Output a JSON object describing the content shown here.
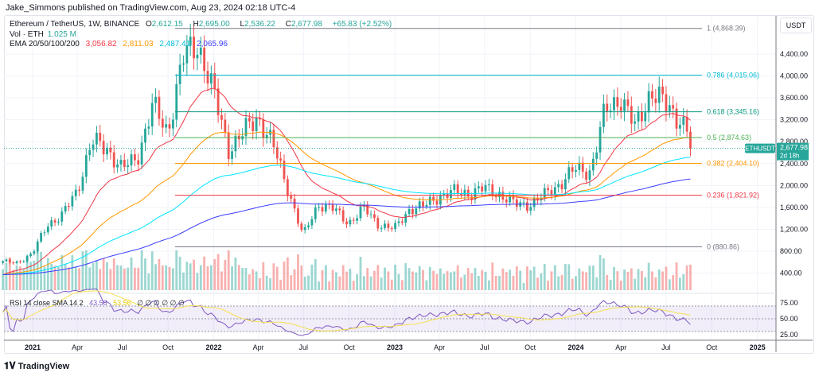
{
  "publisher": "Jake_Simmons published on TradingView.com, Aug 23, 2024 02:18 UTC-4",
  "legend": {
    "symbol": "Ethereum / TetherUS, 1W, BINANCE",
    "o_label": "O",
    "o": "2,612.15",
    "h_label": "H",
    "h": "2,695.00",
    "l_label": "L",
    "l": "2,536.22",
    "c_label": "C",
    "c": "2,677.98",
    "change": "+65.83 (+2.52%)",
    "vol_label": "Vol · ETH",
    "vol": "1.025 M",
    "ema_label": "EMA 20/50/100/200",
    "ema_values": [
      "3,056.82",
      "2,811.03",
      "2,487.41",
      "2,065.96"
    ],
    "rsi_label": "RSI 14 close SMA 14 2",
    "rsi_value": "43.58",
    "rsi_sma": "53.56",
    "rsi_empty": "∅ ∅ ∅ ∅ ∅ ∅"
  },
  "price_axis": {
    "unit": "USDT",
    "ticks": [
      "4,400.00",
      "4,000.00",
      "3,600.00",
      "3,200.00",
      "2,800.00",
      "2,400.00",
      "2,000.00",
      "1,600.00",
      "1,200.00",
      "800.00",
      "400.00"
    ]
  },
  "rsi_axis": {
    "ticks": [
      "75.00",
      "50.00",
      "25.00"
    ]
  },
  "time_axis": {
    "ticks": [
      "2021",
      "Apr",
      "Jul",
      "Oct",
      "2022",
      "Apr",
      "Jul",
      "Oct",
      "2023",
      "Apr",
      "Jul",
      "Oct",
      "2024",
      "Apr",
      "Jul",
      "Oct",
      "2025"
    ]
  },
  "last_price": {
    "symbol": "ETHUSDT",
    "price": "2,677.98",
    "countdown": "2d 18h"
  },
  "footer": {
    "brand": "TradingView"
  },
  "colors": {
    "up": "#26a69a",
    "down": "#ef5350",
    "ema20": "#f23645",
    "ema50": "#ff9800",
    "ema100": "#00e5ff",
    "ema200": "#3d3dff",
    "rsi": "#7e57c2",
    "rsi_sma": "#f5e050"
  },
  "chart_data": {
    "type": "candlestick",
    "interval": "1W",
    "ylim": [
      400,
      4868.39
    ],
    "monthly_closes": {
      "dates": [
        "2020-11",
        "2020-12",
        "2021-01",
        "2021-02",
        "2021-03",
        "2021-04",
        "2021-05",
        "2021-06",
        "2021-07",
        "2021-08",
        "2021-09",
        "2021-10",
        "2021-11",
        "2021-12",
        "2022-01",
        "2022-02",
        "2022-03",
        "2022-04",
        "2022-05",
        "2022-06",
        "2022-07",
        "2022-08",
        "2022-09",
        "2022-10",
        "2022-11",
        "2022-12",
        "2023-01",
        "2023-02",
        "2023-03",
        "2023-04",
        "2023-05",
        "2023-06",
        "2023-07",
        "2023-08",
        "2023-09",
        "2023-10",
        "2023-11",
        "2023-12",
        "2024-01",
        "2024-02",
        "2024-03",
        "2024-04",
        "2024-05",
        "2024-06",
        "2024-07",
        "2024-08"
      ],
      "close": [
        600,
        737,
        1314,
        1416,
        1918,
        2773,
        2706,
        2275,
        2536,
        3433,
        3001,
        4288,
        4630,
        3682,
        2688,
        2919,
        3282,
        2727,
        1942,
        1067,
        1678,
        1554,
        1328,
        1572,
        1296,
        1196,
        1585,
        1605,
        1822,
        1870,
        1874,
        1934,
        1857,
        1646,
        1671,
        1816,
        2052,
        2282,
        2283,
        3340,
        3647,
        3015,
        3762,
        3433,
        3232,
        2678
      ]
    },
    "fibonacci": [
      {
        "level": "1",
        "price": 4868.39,
        "label": "1 (4,868.39)",
        "color": "#787b86"
      },
      {
        "level": "0.786",
        "price": 4015.06,
        "label": "0.786 (4,015.06)",
        "color": "#00bcd4"
      },
      {
        "level": "0.618",
        "price": 3345.16,
        "label": "0.618 (3,345.16)",
        "color": "#089981"
      },
      {
        "level": "0.5",
        "price": 2874.63,
        "label": "0.5 (2,874.63)",
        "color": "#4caf50"
      },
      {
        "level": "0.382",
        "price": 2404.1,
        "label": "0.382 (2,404.10)",
        "color": "#ff9800"
      },
      {
        "level": "0.236",
        "price": 1821.92,
        "label": "0.236 (1,821.92)",
        "color": "#f23645"
      },
      {
        "level": "0",
        "price": 880.86,
        "label": "0 (880.86)",
        "color": "#787b86"
      }
    ],
    "rsi_bands": [
      70,
      50,
      30
    ]
  }
}
